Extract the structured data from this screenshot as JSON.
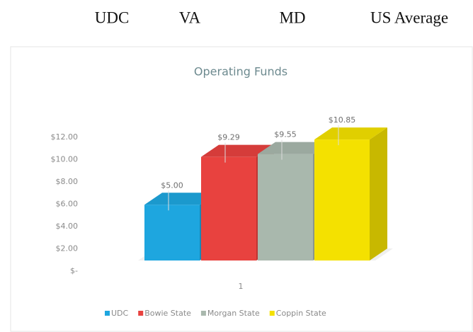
{
  "header": {
    "columns": [
      "UDC",
      "VA",
      "MD",
      "US Average"
    ]
  },
  "chart_data": {
    "type": "bar3d",
    "title": "Operating Funds",
    "categories": [
      "1"
    ],
    "series": [
      {
        "name": "UDC",
        "color": "#1ea6df",
        "values": [
          5.0
        ],
        "value_labels": [
          "$5.00"
        ]
      },
      {
        "name": "Bowie State",
        "color": "#e8423f",
        "values": [
          9.29
        ],
        "value_labels": [
          "$9.29"
        ]
      },
      {
        "name": "Morgan State",
        "color": "#a9b8ad",
        "values": [
          9.55
        ],
        "value_labels": [
          "$9.55"
        ]
      },
      {
        "name": "Coppin State",
        "color": "#f4e100",
        "values": [
          10.85
        ],
        "value_labels": [
          "$10.85"
        ]
      }
    ],
    "ylim": [
      0,
      12
    ],
    "yticks": [
      {
        "value": 0,
        "label": "$-"
      },
      {
        "value": 2,
        "label": "$2.00"
      },
      {
        "value": 4,
        "label": "$4.00"
      },
      {
        "value": 6,
        "label": "$6.00"
      },
      {
        "value": 8,
        "label": "$8.00"
      },
      {
        "value": 10,
        "label": "$10.00"
      },
      {
        "value": 12,
        "label": "$12.00"
      }
    ],
    "legend": "bottom"
  }
}
